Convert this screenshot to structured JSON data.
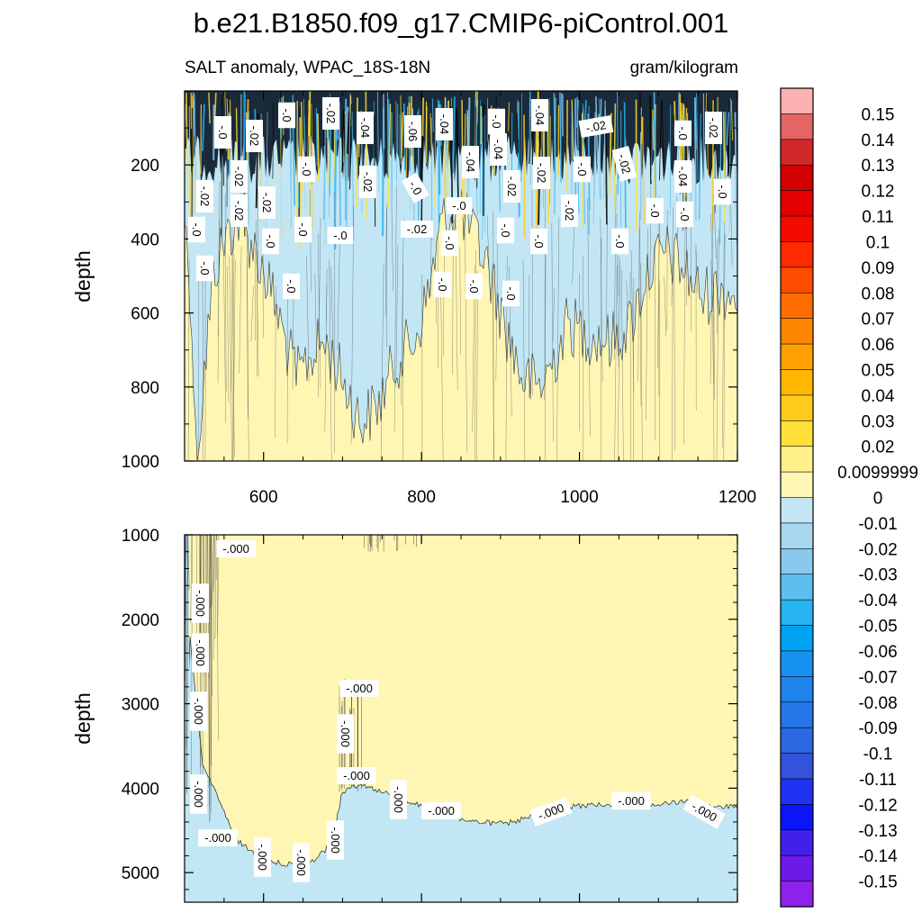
{
  "title": "b.e21.B1850.f09_g17.CMIP6-piControl.001",
  "subtitle_left": "SALT anomaly, WPAC_18S-18N",
  "subtitle_right": "gram/kilogram",
  "chart_data": [
    {
      "type": "heatmap",
      "panel": "upper",
      "variable": "SALT anomaly",
      "region": "WPAC_18S-18N",
      "units": "gram/kilogram",
      "ylabel": "depth",
      "xlim": [
        500,
        1200
      ],
      "ylim": [
        0,
        1000
      ],
      "y_inverted": true,
      "x_ticks": [
        "600",
        "800",
        "1000",
        "1200"
      ],
      "y_ticks": [
        "200",
        "400",
        "600",
        "800",
        "1000"
      ],
      "contour_labels": [
        "-.02",
        "-.02",
        "-.0",
        "-.02",
        "-.04",
        "-.06",
        "-.04",
        "-.0",
        "-.04",
        "-.02",
        "-.0",
        "-.02",
        "-.02",
        "-.0",
        "-.02",
        "-.0",
        "-.04",
        "-.04",
        "-.02",
        "-.02",
        "-.0",
        "-.02",
        "-.04",
        "-.02",
        "-.02",
        "-.02",
        "-.0",
        "-.0",
        "-.02",
        "-.0",
        "-.0",
        "-.02",
        "-.0",
        "-.0",
        "-.0",
        "-.0",
        "-.0",
        "-.0",
        "-.0",
        "-.0",
        "-.0",
        "-.0",
        "-.0",
        "-.0",
        "-.0",
        "-.0"
      ]
    },
    {
      "type": "heatmap",
      "panel": "lower",
      "ylabel": "depth",
      "xlim": [
        500,
        1200
      ],
      "ylim": [
        1000,
        5350
      ],
      "y_inverted": true,
      "y_ticks": [
        "1000",
        "2000",
        "3000",
        "4000",
        "5000"
      ],
      "contour_labels": [
        "-.000",
        "-.000",
        "-.000",
        "-.000",
        "-.000",
        "-.000",
        "-.000",
        "-.000",
        "-.000",
        "-.000",
        "-.000",
        "-.000",
        "-.000",
        "-.000",
        "-.000",
        "-.000",
        "-.000"
      ]
    }
  ],
  "colorbar": {
    "labels": [
      "0.15",
      "0.14",
      "0.13",
      "0.12",
      "0.11",
      "0.1",
      "0.09",
      "0.08",
      "0.07",
      "0.06",
      "0.05",
      "0.04",
      "0.03",
      "0.02",
      "0.0099999",
      "0",
      "-0.01",
      "-0.02",
      "-0.03",
      "-0.04",
      "-0.05",
      "-0.06",
      "-0.07",
      "-0.08",
      "-0.09",
      "-0.1",
      "-0.11",
      "-0.12",
      "-0.13",
      "-0.14",
      "-0.15"
    ],
    "colors": [
      "#fdb1b1",
      "#e56464",
      "#d02828",
      "#d20000",
      "#e20000",
      "#f50a00",
      "#ff2a00",
      "#ff4b00",
      "#ff6d00",
      "#ff8700",
      "#ffa000",
      "#ffb700",
      "#ffcb1a",
      "#ffdf3a",
      "#fff08a",
      "#fff6b4",
      "#c2e6f4",
      "#a8d8ef",
      "#8ac9ee",
      "#5cbff0",
      "#27b2f2",
      "#00a3f3",
      "#1691ef",
      "#1e84ec",
      "#2476e8",
      "#2c68e2",
      "#3353da",
      "#1e33f2",
      "#0a15f8",
      "#4220ea",
      "#6d1ae6",
      "#8e22ea"
    ]
  }
}
